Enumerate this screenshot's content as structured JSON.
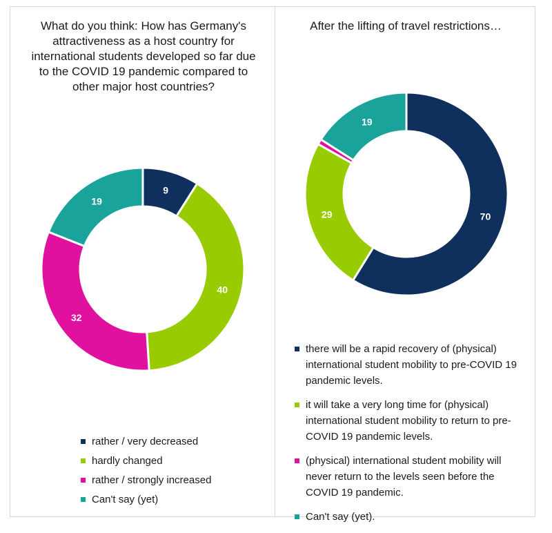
{
  "chart_data": [
    {
      "type": "pie",
      "title": "What do you think: How has Germany's attractiveness as a host country for international students developed so far due to the COVID 19 pandemic compared to other major host countries?",
      "categories": [
        "rather / very decreased",
        "hardly changed",
        "rather / strongly increased",
        "Can't say (yet)"
      ],
      "values": [
        9,
        40,
        32,
        19
      ],
      "colors": [
        "#0f2f5c",
        "#99cc00",
        "#e0119f",
        "#1aa39a"
      ],
      "legend": "bottom"
    },
    {
      "type": "pie",
      "title": "After the lifting of travel restrictions…",
      "categories": [
        "there will be a rapid recovery of (physical) international student mobility to pre-COVID 19 pandemic levels.",
        "it will take a very long time for (physical) international student mobility to return to pre-COVID 19 pandemic levels.",
        "(physical) international student mobility will never return to the levels seen before the COVID 19 pandemic.",
        "Can't say (yet)."
      ],
      "values": [
        70,
        29,
        1,
        19
      ],
      "data_labels": [
        "70",
        "29",
        "",
        "19"
      ],
      "colors": [
        "#0f2f5c",
        "#99cc00",
        "#e0119f",
        "#1aa39a"
      ],
      "legend": "bottom"
    }
  ]
}
